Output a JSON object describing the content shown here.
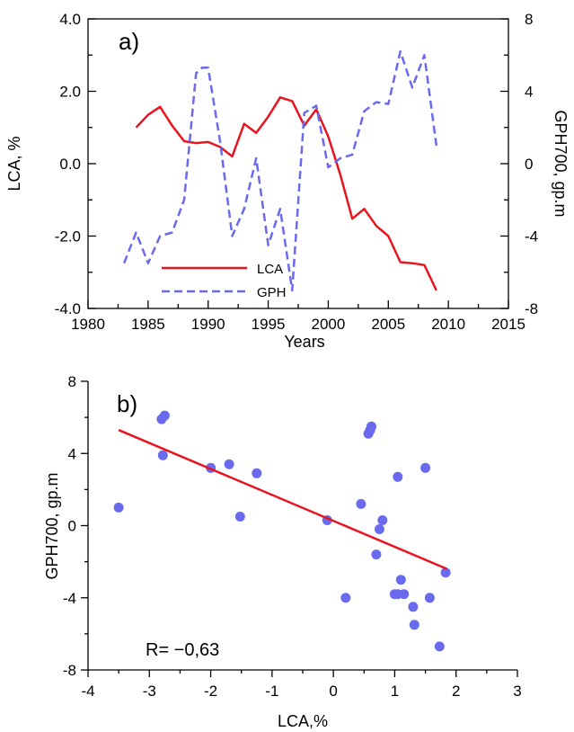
{
  "chart_data": [
    {
      "panel_label": "a)",
      "type": "line",
      "xlabel": "Years",
      "ylabel": "LCA, %",
      "ylabel_right": "GPH700, gp.m",
      "xlim": [
        1980,
        2015
      ],
      "ylim": [
        -4.0,
        4.0
      ],
      "ylim_right": [
        -8,
        8
      ],
      "xticks": [
        1980,
        1985,
        1990,
        1995,
        2000,
        2005,
        2010,
        2015
      ],
      "yticks": [
        -4.0,
        -2.0,
        0.0,
        2.0,
        4.0
      ],
      "yticks_labels": [
        "-4.0",
        "-2.0",
        "0.0",
        "2.0",
        "4.0"
      ],
      "yticks_right": [
        -8,
        -4,
        0,
        4,
        8
      ],
      "legend": "bottom-left",
      "series": [
        {
          "name": "LCA",
          "axis": "left",
          "color": "#e8141e",
          "style": "solid",
          "x": [
            1984,
            1985,
            1986,
            1987,
            1988,
            1989,
            1990,
            1991,
            1992,
            1993,
            1994,
            1995,
            1996,
            1997,
            1998,
            1999,
            2000,
            2001,
            2002,
            2003,
            2004,
            2005,
            2006,
            2007,
            2008,
            2009
          ],
          "values": [
            1.0,
            1.35,
            1.57,
            1.05,
            0.62,
            0.57,
            0.6,
            0.46,
            0.2,
            1.1,
            0.85,
            1.3,
            1.83,
            1.73,
            1.05,
            1.5,
            0.75,
            -0.3,
            -1.52,
            -1.25,
            -1.72,
            -2.0,
            -2.72,
            -2.75,
            -2.8,
            -3.5
          ]
        },
        {
          "name": "GPH",
          "axis": "right",
          "color": "#6a6aee",
          "style": "dashed",
          "x": [
            1983,
            1984,
            1985,
            1986,
            1987,
            1988,
            1989,
            1989.5,
            1990,
            1991,
            1992,
            1993,
            1994,
            1995,
            1996,
            1997,
            1998,
            1999,
            2000,
            2001,
            2002,
            2003,
            2004,
            2005,
            2006,
            2007,
            2008,
            2009
          ],
          "values": [
            -5.5,
            -3.8,
            -5.5,
            -4.0,
            -3.8,
            -2.0,
            5.0,
            5.3,
            5.3,
            1.2,
            -4.0,
            -2.5,
            0.3,
            -4.5,
            -2.5,
            -7.0,
            2.8,
            3.2,
            -0.2,
            0.3,
            0.5,
            2.9,
            3.4,
            3.3,
            6.2,
            4.2,
            6.0,
            1.0
          ]
        }
      ]
    },
    {
      "panel_label": "b)",
      "type": "scatter",
      "xlabel": "LCA,%",
      "ylabel": "GPH700, gp.m",
      "xlim": [
        -4,
        3
      ],
      "ylim": [
        -8,
        8
      ],
      "xticks": [
        -4,
        -3,
        -2,
        -1,
        0,
        1,
        2,
        3
      ],
      "yticks": [
        -8,
        -4,
        0,
        4,
        8
      ],
      "annotation": "R= −0,63",
      "point_color": "#6a6aee",
      "line_color": "#e8141e",
      "points_x": [
        -3.5,
        -2.8,
        -2.75,
        -2.78,
        -2.0,
        -1.7,
        -1.52,
        -1.25,
        -0.1,
        0.2,
        0.45,
        0.57,
        0.6,
        0.62,
        0.7,
        0.75,
        0.8,
        1.0,
        1.05,
        1.05,
        1.1,
        1.15,
        1.3,
        1.32,
        1.5,
        1.57,
        1.73,
        1.83
      ],
      "points_y": [
        1.0,
        5.9,
        6.1,
        3.9,
        3.2,
        3.4,
        0.5,
        2.9,
        0.3,
        -4.0,
        1.2,
        5.1,
        5.3,
        5.5,
        -1.6,
        -0.2,
        0.3,
        -3.8,
        2.7,
        -3.8,
        -3.0,
        -3.8,
        -4.5,
        -5.5,
        3.2,
        -4.0,
        -6.7,
        -2.6
      ],
      "regression": {
        "x": [
          -3.5,
          1.85
        ],
        "y": [
          5.3,
          -2.4
        ]
      }
    }
  ]
}
